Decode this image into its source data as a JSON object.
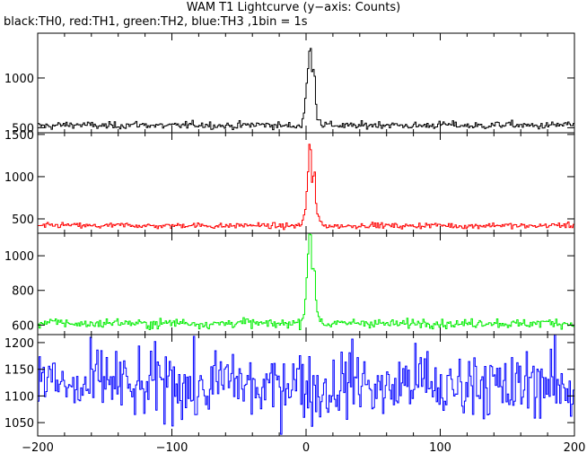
{
  "chart_data": {
    "type": "line",
    "title": "WAM T1 Lightcurve (y−axis: Counts)",
    "subtitle": "black:TH0, red:TH1, green:TH2, blue:TH3 ,1bin = 1s",
    "xlim": [
      -200,
      200
    ],
    "x_ticks": [
      -200,
      -100,
      0,
      100,
      200
    ],
    "bin_seconds": 1,
    "panels": [
      {
        "name": "TH0",
        "color": "#000000",
        "ylim": [
          450,
          1450
        ],
        "y_ticks": [
          500,
          1000
        ],
        "baseline": 525,
        "noise": 18,
        "burst": [
          [
            -3,
            560
          ],
          [
            -1,
            700
          ],
          [
            0,
            880
          ],
          [
            1,
            1000
          ],
          [
            2,
            1150
          ],
          [
            3,
            1380
          ],
          [
            4,
            1200
          ],
          [
            5,
            900
          ],
          [
            6,
            1320
          ],
          [
            7,
            800
          ],
          [
            8,
            640
          ],
          [
            10,
            580
          ],
          [
            12,
            550
          ]
        ]
      },
      {
        "name": "TH1",
        "color": "#ff0000",
        "ylim": [
          330,
          1520
        ],
        "y_ticks": [
          500,
          1000,
          1500
        ],
        "baseline": 420,
        "noise": 16,
        "burst": [
          [
            -3,
            470
          ],
          [
            -1,
            560
          ],
          [
            0,
            700
          ],
          [
            1,
            900
          ],
          [
            2,
            1250
          ],
          [
            3,
            1490
          ],
          [
            4,
            1100
          ],
          [
            5,
            700
          ],
          [
            6,
            1350
          ],
          [
            7,
            800
          ],
          [
            8,
            560
          ],
          [
            10,
            480
          ],
          [
            12,
            450
          ]
        ]
      },
      {
        "name": "TH2",
        "color": "#00ee00",
        "ylim": [
          545,
          1130
        ],
        "y_ticks": [
          600,
          800,
          1000
        ],
        "baseline": 610,
        "noise": 13,
        "burst": [
          [
            -3,
            640
          ],
          [
            -1,
            700
          ],
          [
            0,
            820
          ],
          [
            1,
            950
          ],
          [
            2,
            1100
          ],
          [
            3,
            1180
          ],
          [
            4,
            1000
          ],
          [
            5,
            820
          ],
          [
            6,
            1050
          ],
          [
            7,
            800
          ],
          [
            8,
            680
          ],
          [
            10,
            650
          ],
          [
            12,
            630
          ]
        ]
      },
      {
        "name": "TH3",
        "color": "#0000ff",
        "ylim": [
          1025,
          1215
        ],
        "y_ticks": [
          1050,
          1100,
          1150,
          1200
        ],
        "baseline": 1120,
        "noise": 32,
        "burst": []
      }
    ]
  }
}
